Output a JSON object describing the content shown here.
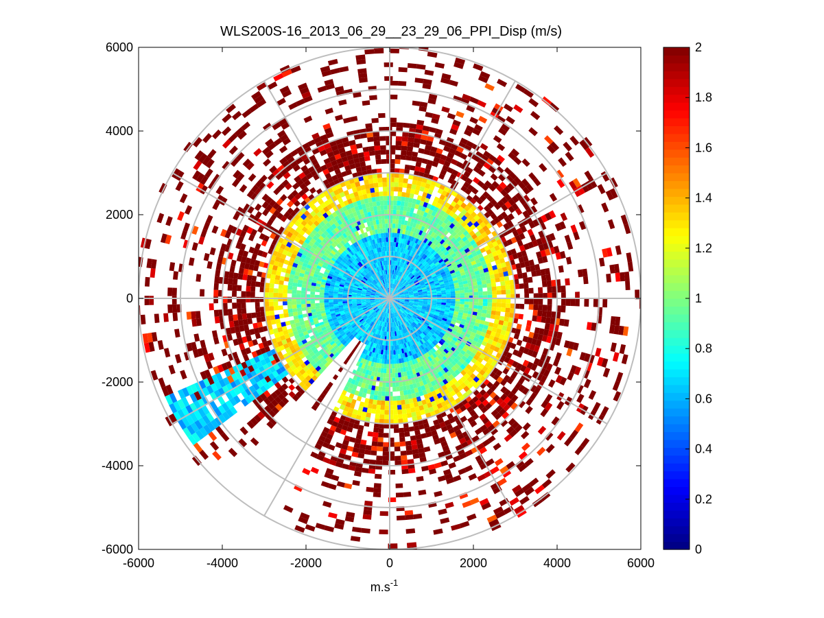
{
  "chart_data": {
    "type": "heatmap",
    "subtype": "polar-ppi",
    "title": "WLS200S-16_2013_06_29__23_29_06_PPI_Disp (m/s)",
    "xlabel": "m.s",
    "xlabel_superscript": "-1",
    "ylabel": "",
    "xlim": [
      -6000,
      6000
    ],
    "ylim": [
      -6000,
      6000
    ],
    "x_ticks": [
      -6000,
      -4000,
      -2000,
      0,
      2000,
      4000,
      6000
    ],
    "y_ticks": [
      -6000,
      -4000,
      -2000,
      0,
      2000,
      4000,
      6000
    ],
    "x_tick_labels": [
      "-6000",
      "-4000",
      "-2000",
      "0",
      "2000",
      "4000",
      "6000"
    ],
    "y_tick_labels": [
      "-6000",
      "-4000",
      "-2000",
      "0",
      "2000",
      "4000",
      "6000"
    ],
    "max_range": 6000,
    "range_rings": [
      1000,
      2000,
      3000,
      4000,
      5000,
      6000
    ],
    "radial_lines_deg": [
      0,
      30,
      60,
      90,
      120,
      150,
      180,
      210,
      240,
      270,
      300,
      330
    ],
    "colorbar": {
      "colormap": "jet",
      "clim": [
        0,
        2
      ],
      "ticks": [
        0,
        0.2,
        0.4,
        0.6,
        0.8,
        1,
        1.2,
        1.4,
        1.6,
        1.8,
        2
      ],
      "tick_labels": [
        "0",
        "0.2",
        "0.4",
        "0.6",
        "0.8",
        "1",
        "1.2",
        "1.4",
        "1.6",
        "1.8",
        "2"
      ]
    },
    "radial_profile": [
      {
        "range_min": 0,
        "range_max": 1600,
        "typical_value": 0.65,
        "coverage": 1.0
      },
      {
        "range_min": 1600,
        "range_max": 2400,
        "typical_value": 0.95,
        "coverage": 0.97
      },
      {
        "range_min": 2400,
        "range_max": 3000,
        "typical_value": 1.3,
        "coverage": 0.9
      },
      {
        "range_min": 3000,
        "range_max": 4200,
        "typical_value": 2.0,
        "coverage": 0.65
      },
      {
        "range_min": 4200,
        "range_max": 6000,
        "typical_value": 2.0,
        "coverage": 0.22
      }
    ],
    "gaps": [
      {
        "azimuth_from_north_deg_start": 207,
        "azimuth_from_north_deg_end": 222,
        "note": "no data wedge beyond 1200 m"
      }
    ],
    "features": [
      {
        "azimuth_from_north_deg": 240,
        "range_min": 3000,
        "range_max": 5900,
        "value_range": [
          0.5,
          0.8
        ],
        "note": "low-value cyan streak at far south-west"
      }
    ]
  }
}
